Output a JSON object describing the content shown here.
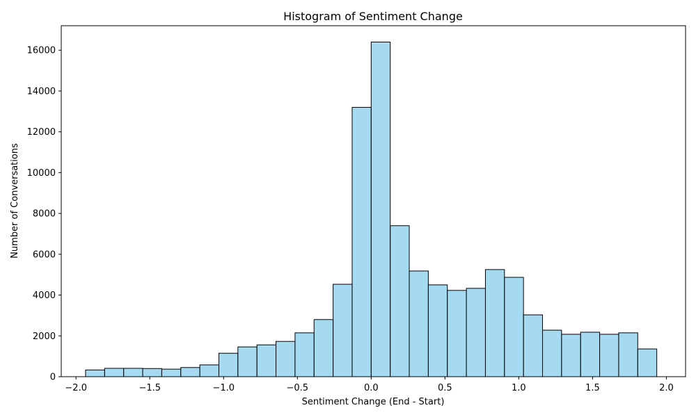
{
  "chart_data": {
    "type": "bar",
    "title": "Histogram of Sentiment Change",
    "xlabel": "Sentiment Change (End - Start)",
    "ylabel": "Number of Conversations",
    "xlim": [
      -2.1,
      2.13
    ],
    "ylim": [
      0,
      17200
    ],
    "x_ticks": [
      -2.0,
      -1.5,
      -1.0,
      -0.5,
      0.0,
      0.5,
      1.0,
      1.5,
      2.0
    ],
    "x_tick_labels": [
      "−2.0",
      "−1.5",
      "−1.0",
      "−0.5",
      "0.0",
      "0.5",
      "1.0",
      "1.5",
      "2.0"
    ],
    "y_ticks": [
      0,
      2000,
      4000,
      6000,
      8000,
      10000,
      12000,
      14000,
      16000
    ],
    "y_tick_labels": [
      "0",
      "2000",
      "4000",
      "6000",
      "8000",
      "10000",
      "12000",
      "14000",
      "16000"
    ],
    "bin_edges": [
      -1.935,
      -1.806,
      -1.677,
      -1.548,
      -1.419,
      -1.29,
      -1.161,
      -1.032,
      -0.903,
      -0.774,
      -0.645,
      -0.516,
      -0.387,
      -0.258,
      -0.129,
      0.0,
      0.129,
      0.258,
      0.387,
      0.516,
      0.645,
      0.774,
      0.903,
      1.032,
      1.161,
      1.29,
      1.419,
      1.548,
      1.677,
      1.806,
      1.935
    ],
    "values": [
      330,
      410,
      410,
      400,
      370,
      450,
      580,
      1150,
      1460,
      1560,
      1730,
      2150,
      2800,
      4530,
      13200,
      16400,
      7400,
      5180,
      4500,
      4230,
      4330,
      5250,
      4870,
      3030,
      2280,
      2080,
      2180,
      2080,
      2150,
      1360
    ],
    "bar_color": "#87CEEB",
    "edge_color": "#000000",
    "grid": false
  }
}
